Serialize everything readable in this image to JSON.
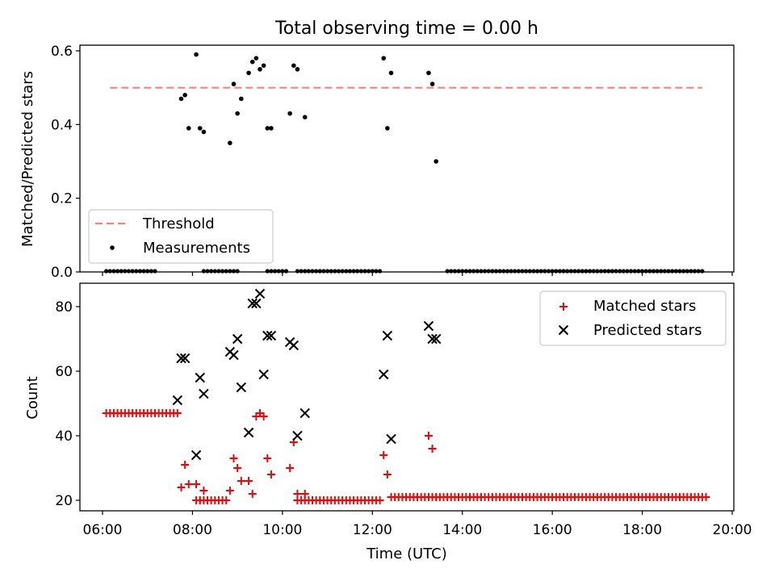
{
  "figure": {
    "title": "Total observing time = 0.00 h",
    "xlabel": "Time (UTC)"
  },
  "chart_data": [
    {
      "type": "scatter",
      "title": "Total observing time = 0.00 h",
      "ylabel": "Matched/Predicted stars",
      "xlabel": "",
      "xlim": [
        "05:30",
        "20:00"
      ],
      "ylim": [
        0,
        0.62
      ],
      "y_ticks": [
        0.0,
        0.2,
        0.4,
        0.6
      ],
      "y_tick_labels": [
        "0.0",
        "0.2",
        "0.4",
        "0.6"
      ],
      "legend": {
        "location": "lower-left",
        "entries": [
          "Threshold",
          "Measurements"
        ]
      },
      "series": [
        {
          "name": "Threshold",
          "kind": "dashed-line",
          "color": "#ff7f7f",
          "x": [
            "06:10",
            "19:20"
          ],
          "y": [
            0.5,
            0.5
          ]
        },
        {
          "name": "Measurements",
          "kind": "points",
          "color": "#000000",
          "x": [
            "07:45",
            "07:50",
            "07:55",
            "08:05",
            "08:10",
            "08:15",
            "08:50",
            "08:55",
            "09:00",
            "09:05",
            "09:15",
            "09:20",
            "09:25",
            "09:30",
            "09:35",
            "09:40",
            "09:45",
            "10:10",
            "10:15",
            "10:20",
            "10:30",
            "12:15",
            "12:20",
            "12:25",
            "13:15",
            "13:20",
            "13:25"
          ],
          "y": [
            0.47,
            0.48,
            0.39,
            0.59,
            0.39,
            0.38,
            0.35,
            0.51,
            0.43,
            0.47,
            0.54,
            0.57,
            0.58,
            0.55,
            0.56,
            0.39,
            0.39,
            0.43,
            0.56,
            0.55,
            0.42,
            0.58,
            0.39,
            0.54,
            0.54,
            0.51,
            0.3
          ]
        }
      ],
      "zero_row": {
        "color": "#000000",
        "value": 0.0,
        "ranges": [
          [
            "06:05",
            "07:10"
          ],
          [
            "08:15",
            "09:00"
          ],
          [
            "09:40",
            "10:05"
          ],
          [
            "10:20",
            "12:10"
          ],
          [
            "13:40",
            "19:20"
          ]
        ]
      }
    },
    {
      "type": "scatter",
      "title": "",
      "ylabel": "Count",
      "xlabel": "Time (UTC)",
      "xlim": [
        "05:30",
        "20:00"
      ],
      "ylim": [
        17,
        88
      ],
      "y_ticks": [
        20,
        40,
        60,
        80
      ],
      "y_tick_labels": [
        "20",
        "40",
        "60",
        "80"
      ],
      "x_ticks": [
        "06:00",
        "08:00",
        "10:00",
        "12:00",
        "14:00",
        "16:00",
        "18:00",
        "20:00"
      ],
      "legend": {
        "location": "top-right",
        "entries": [
          "Matched stars",
          "Predicted stars"
        ]
      },
      "series": [
        {
          "name": "Matched stars",
          "marker": "plus",
          "color": "#ff0000",
          "x": [
            "07:45",
            "07:50",
            "07:55",
            "08:05",
            "08:10",
            "08:15",
            "08:50",
            "08:55",
            "09:00",
            "09:05",
            "09:15",
            "09:20",
            "09:25",
            "09:30",
            "09:35",
            "09:40",
            "09:45",
            "10:10",
            "10:15",
            "10:20",
            "10:30",
            "12:15",
            "12:20",
            "12:25",
            "13:15",
            "13:20",
            "13:25"
          ],
          "y": [
            24,
            31,
            25,
            25,
            20,
            23,
            23,
            33,
            30,
            26,
            26,
            22,
            46,
            47,
            46,
            33,
            28,
            30,
            38,
            22,
            22,
            34,
            28,
            21,
            40,
            36,
            21
          ]
        },
        {
          "name": "Predicted stars",
          "marker": "x",
          "color": "#000000",
          "x": [
            "07:40",
            "07:45",
            "07:50",
            "08:05",
            "08:10",
            "08:15",
            "08:50",
            "08:55",
            "09:00",
            "09:05",
            "09:15",
            "09:20",
            "09:25",
            "09:30",
            "09:35",
            "09:40",
            "09:45",
            "10:10",
            "10:15",
            "10:20",
            "10:30",
            "12:15",
            "12:20",
            "12:25",
            "13:15",
            "13:20",
            "13:25"
          ],
          "y": [
            51,
            64,
            64,
            34,
            58,
            53,
            66,
            65,
            70,
            55,
            41,
            81,
            81,
            84,
            59,
            71,
            71,
            69,
            68,
            40,
            47,
            59,
            71,
            39,
            74,
            70,
            70
          ]
        }
      ],
      "baseline_rows": [
        {
          "color": "#ff0000",
          "value": 47,
          "ranges": [
            [
              "06:05",
              "07:40"
            ]
          ]
        },
        {
          "color": "#ff0000",
          "value": 20,
          "ranges": [
            [
              "08:05",
              "08:45"
            ],
            [
              "10:20",
              "12:10"
            ]
          ]
        },
        {
          "color": "#ff0000",
          "value": 21,
          "ranges": [
            [
              "12:25",
              "19:25"
            ]
          ]
        }
      ]
    }
  ]
}
